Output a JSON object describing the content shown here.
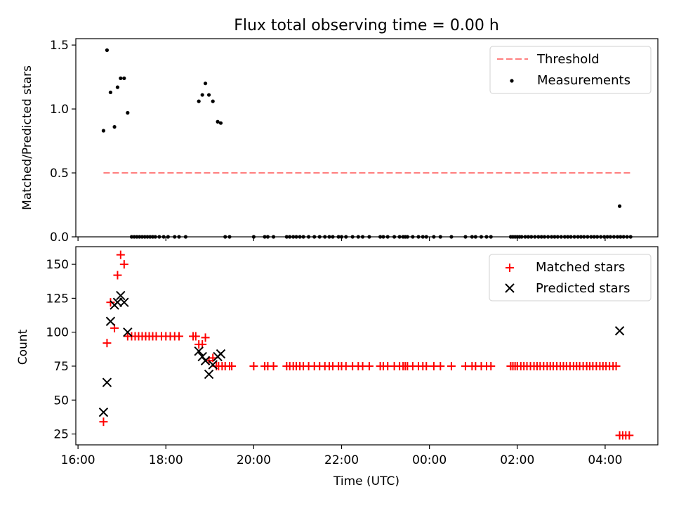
{
  "chart_data": [
    {
      "type": "scatter",
      "title": "Flux total observing time = 0.00 h",
      "xlabel": "",
      "ylabel": "Matched/Predicted stars",
      "xlim": [
        15.95,
        29.2
      ],
      "ylim": [
        0.0,
        1.55
      ],
      "yticks": [
        0.0,
        0.5,
        1.0,
        1.5
      ],
      "yticklabels": [
        "0.0",
        "0.5",
        "1.0",
        "1.5"
      ],
      "grid": false,
      "legend": "top-right",
      "series": [
        {
          "name": "Threshold",
          "kind": "dashed-line",
          "color": "#ff7f7f",
          "x": [
            16.58,
            28.6
          ],
          "y": [
            0.5,
            0.5
          ]
        },
        {
          "name": "Measurements",
          "kind": "point",
          "color": "#000000",
          "x": [
            16.58,
            16.66,
            16.74,
            16.83,
            16.9,
            16.97,
            17.05,
            17.13,
            18.75,
            18.83,
            18.9,
            18.98,
            19.07,
            19.18,
            19.25,
            28.33,
            17.22,
            17.28,
            17.34,
            17.4,
            17.46,
            17.52,
            17.58,
            17.64,
            17.7,
            17.76,
            17.85,
            17.95,
            18.05,
            18.2,
            18.3,
            18.45,
            19.35,
            19.45,
            20.0,
            20.25,
            20.32,
            20.45,
            20.75,
            20.82,
            20.9,
            20.97,
            21.05,
            21.13,
            21.25,
            21.38,
            21.5,
            21.62,
            21.72,
            21.8,
            21.93,
            22.0,
            22.1,
            22.25,
            22.38,
            22.48,
            22.63,
            22.88,
            22.95,
            23.05,
            23.2,
            23.32,
            23.4,
            23.45,
            23.5,
            23.62,
            23.75,
            23.85,
            23.93,
            24.1,
            24.25,
            24.5,
            24.82,
            24.97,
            25.05,
            25.18,
            25.3,
            25.4,
            25.85,
            25.9,
            25.95,
            26.0,
            26.05,
            26.1,
            26.18,
            26.25,
            26.32,
            26.4,
            26.48,
            26.55,
            26.62,
            26.7,
            26.78,
            26.85,
            26.92,
            27.0,
            27.08,
            27.15,
            27.22,
            27.3,
            27.38,
            27.45,
            27.52,
            27.6,
            27.68,
            27.75,
            27.82,
            27.9,
            27.98,
            28.05,
            28.12,
            28.2,
            28.28,
            28.35,
            28.42,
            28.5,
            28.58
          ],
          "y": [
            0.83,
            1.46,
            1.13,
            0.86,
            1.17,
            1.24,
            1.24,
            0.97,
            1.06,
            1.11,
            1.2,
            1.11,
            1.06,
            0.9,
            0.89,
            0.24,
            0,
            0,
            0,
            0,
            0,
            0,
            0,
            0,
            0,
            0,
            0,
            0,
            0,
            0,
            0,
            0,
            0,
            0,
            0,
            0,
            0,
            0,
            0,
            0,
            0,
            0,
            0,
            0,
            0,
            0,
            0,
            0,
            0,
            0,
            0,
            0,
            0,
            0,
            0,
            0,
            0,
            0,
            0,
            0,
            0,
            0,
            0,
            0,
            0,
            0,
            0,
            0,
            0,
            0,
            0,
            0,
            0,
            0,
            0,
            0,
            0,
            0,
            0,
            0,
            0,
            0,
            0,
            0,
            0,
            0,
            0,
            0,
            0,
            0,
            0,
            0,
            0,
            0,
            0,
            0,
            0,
            0,
            0,
            0,
            0,
            0,
            0,
            0,
            0,
            0,
            0,
            0,
            0,
            0,
            0,
            0,
            0,
            0,
            0,
            0,
            0
          ]
        }
      ]
    },
    {
      "type": "scatter",
      "title": "",
      "xlabel": "Time (UTC)",
      "ylabel": "Count",
      "xlim": [
        15.95,
        29.2
      ],
      "ylim": [
        17,
        163
      ],
      "xticks": [
        16,
        18,
        20,
        22,
        24,
        26,
        28
      ],
      "xticklabels": [
        "16:00",
        "18:00",
        "20:00",
        "22:00",
        "00:00",
        "02:00",
        "04:00"
      ],
      "yticks": [
        25,
        50,
        75,
        100,
        125,
        150
      ],
      "yticklabels": [
        "25",
        "50",
        "75",
        "100",
        "125",
        "150"
      ],
      "grid": false,
      "legend": "top-right",
      "series": [
        {
          "name": "Matched stars",
          "kind": "plus",
          "color": "#ff0000",
          "x": [
            16.58,
            16.66,
            16.74,
            16.83,
            16.9,
            16.97,
            17.05,
            17.13,
            17.22,
            17.3,
            17.38,
            17.46,
            17.54,
            17.62,
            17.7,
            17.78,
            17.9,
            18.0,
            18.1,
            18.2,
            18.3,
            18.62,
            18.68,
            18.75,
            18.83,
            18.9,
            18.98,
            19.07,
            19.15,
            19.2,
            19.28,
            19.35,
            19.45,
            19.5,
            20.0,
            20.25,
            20.32,
            20.45,
            20.75,
            20.82,
            20.9,
            20.97,
            21.05,
            21.13,
            21.25,
            21.38,
            21.5,
            21.62,
            21.72,
            21.8,
            21.93,
            22.0,
            22.1,
            22.25,
            22.38,
            22.48,
            22.63,
            22.88,
            22.95,
            23.05,
            23.2,
            23.32,
            23.4,
            23.45,
            23.5,
            23.62,
            23.75,
            23.85,
            23.93,
            24.1,
            24.25,
            24.5,
            24.82,
            24.97,
            25.05,
            25.18,
            25.3,
            25.4,
            25.85,
            25.9,
            25.95,
            26.0,
            26.08,
            26.15,
            26.22,
            26.3,
            26.38,
            26.45,
            26.52,
            26.6,
            26.68,
            26.75,
            26.82,
            26.9,
            26.98,
            27.05,
            27.12,
            27.2,
            27.28,
            27.35,
            27.42,
            27.5,
            27.58,
            27.65,
            27.72,
            27.8,
            27.88,
            27.95,
            28.02,
            28.1,
            28.18,
            28.25,
            28.33,
            28.4,
            28.47,
            28.55
          ],
          "y": [
            34,
            92,
            122,
            103,
            142,
            157,
            150,
            97,
            97,
            97,
            97,
            97,
            97,
            97,
            97,
            97,
            97,
            97,
            97,
            97,
            97,
            97,
            97,
            91,
            91,
            96,
            79,
            81,
            75,
            75,
            75,
            75,
            75,
            75,
            75,
            75,
            75,
            75,
            75,
            75,
            75,
            75,
            75,
            75,
            75,
            75,
            75,
            75,
            75,
            75,
            75,
            75,
            75,
            75,
            75,
            75,
            75,
            75,
            75,
            75,
            75,
            75,
            75,
            75,
            75,
            75,
            75,
            75,
            75,
            75,
            75,
            75,
            75,
            75,
            75,
            75,
            75,
            75,
            75,
            75,
            75,
            75,
            75,
            75,
            75,
            75,
            75,
            75,
            75,
            75,
            75,
            75,
            75,
            75,
            75,
            75,
            75,
            75,
            75,
            75,
            75,
            75,
            75,
            75,
            75,
            75,
            75,
            75,
            75,
            75,
            75,
            75,
            24,
            24,
            24,
            24
          ]
        },
        {
          "name": "Predicted stars",
          "kind": "x",
          "color": "#000000",
          "x": [
            16.58,
            16.66,
            16.74,
            16.83,
            16.9,
            16.97,
            17.05,
            17.13,
            18.75,
            18.83,
            18.9,
            18.98,
            19.07,
            19.18,
            19.25,
            28.33
          ],
          "y": [
            41,
            63,
            108,
            120,
            122,
            127,
            122,
            100,
            86,
            82,
            79,
            69,
            76,
            82,
            84,
            101
          ]
        }
      ]
    }
  ]
}
